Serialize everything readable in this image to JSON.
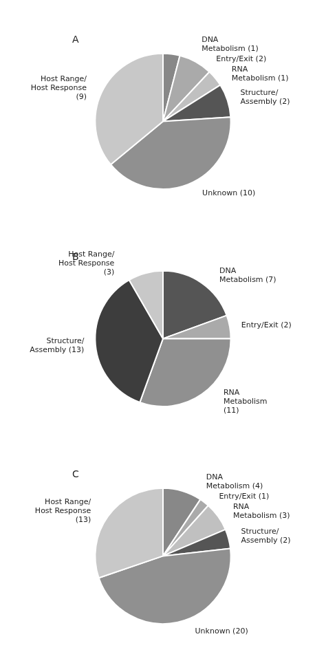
{
  "chart_data": [
    {
      "type": "pie",
      "title": "A",
      "categories": [
        "DNA\nMetabolism (1)",
        "Entry/Exit (2)",
        "RNA\nMetabolism (1)",
        "Structure/\nAssembly (2)",
        "Unknown (10)",
        "Host Range/\nHost Response\n(9)"
      ],
      "values": [
        1,
        2,
        1,
        2,
        10,
        9
      ],
      "colors": [
        "#888888",
        "#aaaaaa",
        "#c0c0c0",
        "#555555",
        "#909090",
        "#c8c8c8"
      ]
    },
    {
      "type": "pie",
      "title": "B",
      "categories": [
        "DNA\nMetabolism (7)",
        "Entry/Exit (2)",
        "RNA\nMetabolism\n(11)",
        "Structure/\nAssembly (13)",
        "Host Range/\nHost Response\n(3)"
      ],
      "values": [
        7,
        2,
        11,
        13,
        3
      ],
      "colors": [
        "#555555",
        "#aaaaaa",
        "#909090",
        "#3d3d3d",
        "#c8c8c8"
      ]
    },
    {
      "type": "pie",
      "title": "C",
      "categories": [
        "DNA\nMetabolism (4)",
        "Entry/Exit (1)",
        "RNA\nMetabolism (3)",
        "Structure/\nAssembly (2)",
        "Unknown (20)",
        "Host Range/\nHost Response\n(13)"
      ],
      "values": [
        4,
        1,
        3,
        2,
        20,
        13
      ],
      "colors": [
        "#888888",
        "#aaaaaa",
        "#c0c0c0",
        "#555555",
        "#909090",
        "#c8c8c8"
      ]
    }
  ]
}
